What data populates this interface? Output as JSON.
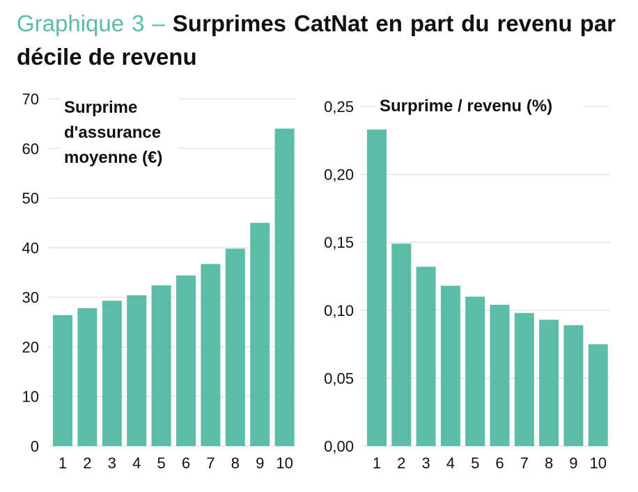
{
  "title": {
    "lead": "Graphique 3 –",
    "main": "Surprimes CatNat en part du revenu par décile de revenu"
  },
  "colors": {
    "bar": "#5bbda7",
    "grid": "#d9d9d9",
    "title_lead": "#5bbda7"
  },
  "chart_data": [
    {
      "type": "bar",
      "annotation": [
        "Surprime",
        "d'assurance",
        "moyenne (€)"
      ],
      "categories": [
        "1",
        "2",
        "3",
        "4",
        "5",
        "6",
        "7",
        "8",
        "9",
        "10"
      ],
      "values": [
        26.4,
        27.8,
        29.3,
        30.4,
        32.4,
        34.4,
        36.7,
        39.8,
        45.0,
        64.0
      ],
      "ylim": [
        0,
        70
      ],
      "yticks": [
        0,
        10,
        20,
        30,
        40,
        50,
        60,
        70
      ],
      "ytick_labels": [
        "0",
        "10",
        "20",
        "30",
        "40",
        "50",
        "60",
        "70"
      ],
      "grid": true
    },
    {
      "type": "bar",
      "annotation": [
        "Surprime / revenu (%)"
      ],
      "categories": [
        "1",
        "2",
        "3",
        "4",
        "5",
        "6",
        "7",
        "8",
        "9",
        "10"
      ],
      "values": [
        0.233,
        0.149,
        0.132,
        0.118,
        0.11,
        0.104,
        0.098,
        0.093,
        0.089,
        0.075
      ],
      "ylim": [
        0,
        0.25
      ],
      "yticks": [
        0,
        0.05,
        0.1,
        0.15,
        0.2,
        0.25
      ],
      "ytick_labels": [
        "0,00",
        "0,05",
        "0,10",
        "0,15",
        "0,20",
        "0,25"
      ],
      "grid": true
    }
  ]
}
